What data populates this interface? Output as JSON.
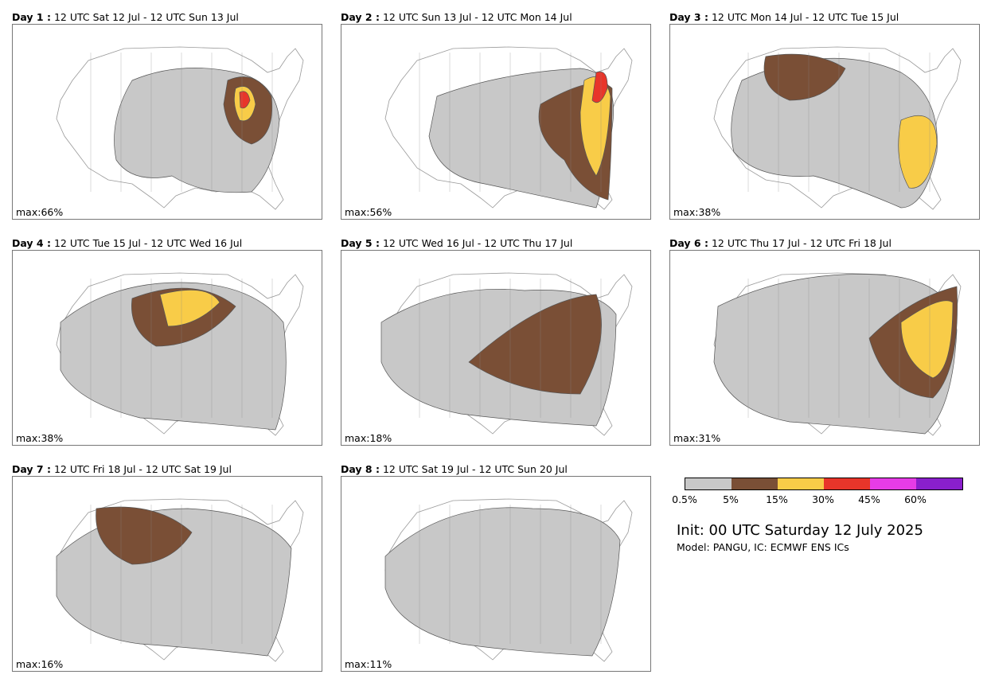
{
  "panels": [
    {
      "day": "Day 1 :",
      "period": "12 UTC Sat 12 Jul - 12 UTC Sun 13 Jul",
      "max": "max:66%",
      "level": 5,
      "icon": "probability-map-day1"
    },
    {
      "day": "Day 2 :",
      "period": "12 UTC Sun 13 Jul - 12 UTC Mon 14 Jul",
      "max": "max:56%",
      "level": 5,
      "icon": "probability-map-day2"
    },
    {
      "day": "Day 3 :",
      "period": "12 UTC Mon 14 Jul - 12 UTC Tue 15 Jul",
      "max": "max:38%",
      "level": 3,
      "icon": "probability-map-day3"
    },
    {
      "day": "Day 4 :",
      "period": "12 UTC Tue 15 Jul - 12 UTC Wed 16 Jul",
      "max": "max:38%",
      "level": 3,
      "icon": "probability-map-day4"
    },
    {
      "day": "Day 5 :",
      "period": "12 UTC Wed 16 Jul - 12 UTC Thu 17 Jul",
      "max": "max:18%",
      "level": 2,
      "icon": "probability-map-day5"
    },
    {
      "day": "Day 6 :",
      "period": "12 UTC Thu 17 Jul - 12 UTC Fri 18 Jul",
      "max": "max:31%",
      "level": 3,
      "icon": "probability-map-day6"
    },
    {
      "day": "Day 7 :",
      "period": "12 UTC Fri 18 Jul - 12 UTC Sat 19 Jul",
      "max": "max:16%",
      "level": 2,
      "icon": "probability-map-day7"
    },
    {
      "day": "Day 8 :",
      "period": "12 UTC Sat 19 Jul - 12 UTC Sun 20 Jul",
      "max": "max:11%",
      "level": 1,
      "icon": "probability-map-day8"
    }
  ],
  "legend": {
    "colors": [
      "#c8c8c8",
      "#7a4f36",
      "#f8cc48",
      "#e8352a",
      "#e63ce6",
      "#8a1fcc"
    ],
    "ticks": [
      "0.5%",
      "5%",
      "15%",
      "30%",
      "45%",
      "60%"
    ]
  },
  "init": "Init: 00 UTC Saturday 12 July 2025",
  "model": "Model: PANGU, IC: ECMWF ENS ICs"
}
